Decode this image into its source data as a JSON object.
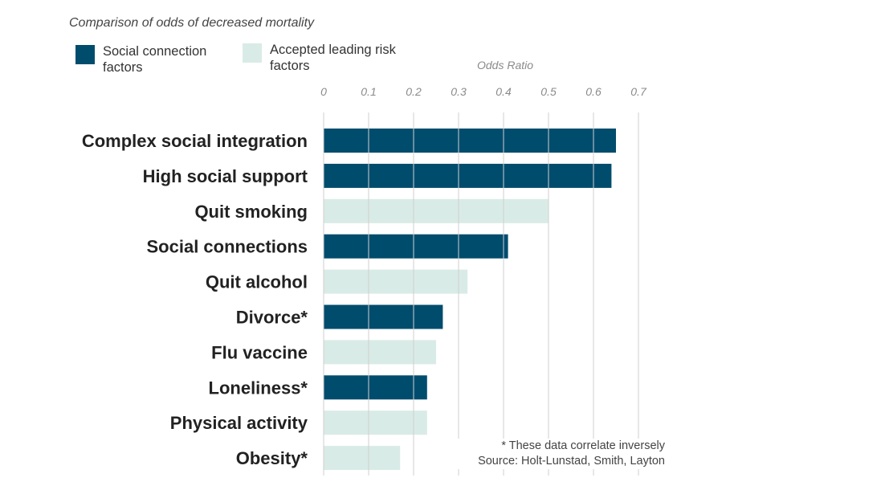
{
  "chart_data": {
    "type": "bar",
    "orientation": "horizontal",
    "title": "Comparison of odds of decreased mortality",
    "xlabel": "Odds Ratio",
    "xlim": [
      0,
      0.7
    ],
    "xticks": [
      "0",
      "0.1",
      "0.2",
      "0.3",
      "0.4",
      "0.5",
      "0.6",
      "0.7"
    ],
    "grid": "vertical",
    "legend_position": "top-left",
    "legend": [
      {
        "key": "social",
        "label": "Social connection factors",
        "color": "#004c6d"
      },
      {
        "key": "risk",
        "label": "Accepted leading risk factors",
        "color": "#d9ebe6"
      }
    ],
    "categories": [
      "Complex social integration",
      "High social support",
      "Quit smoking",
      "Social connections",
      "Quit alcohol",
      "Divorce*",
      "Flu vaccine",
      "Loneliness*",
      "Physical activity",
      "Obesity*"
    ],
    "values": [
      0.65,
      0.64,
      0.5,
      0.41,
      0.32,
      0.265,
      0.25,
      0.23,
      0.23,
      0.17
    ],
    "groups": [
      "social",
      "social",
      "risk",
      "social",
      "risk",
      "social",
      "risk",
      "social",
      "risk",
      "risk"
    ],
    "footnote": "* These data correlate inversely",
    "source": "Source: Holt-Lunstad, Smith, Layton"
  }
}
